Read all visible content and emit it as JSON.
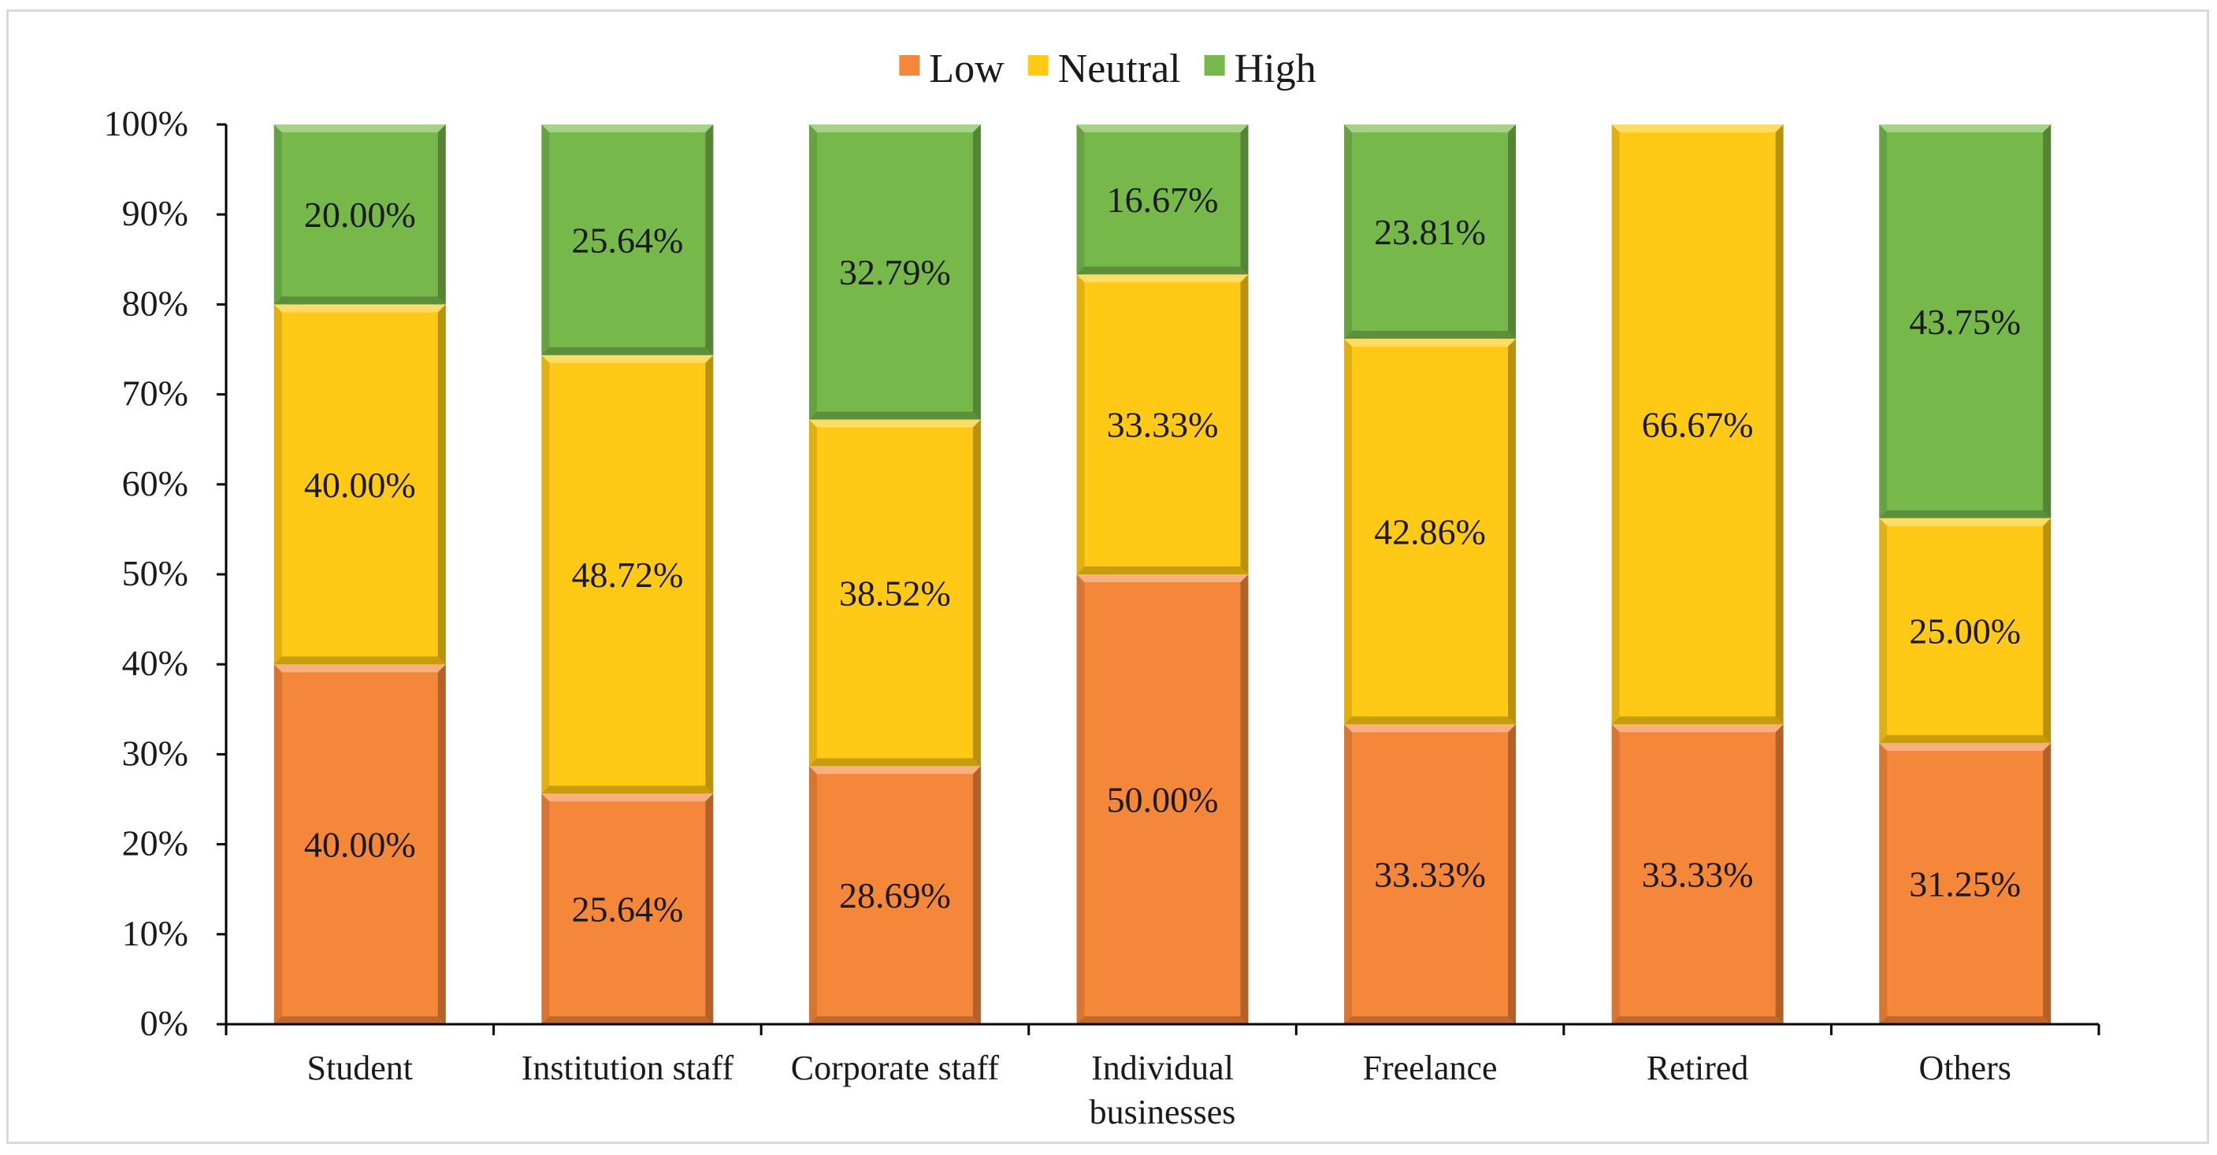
{
  "chart_data": {
    "type": "bar",
    "stacked": true,
    "percent_stacked": true,
    "title": "",
    "xlabel": "",
    "ylabel": "",
    "ylim": [
      0,
      100
    ],
    "ytick_labels": [
      "0%",
      "10%",
      "20%",
      "30%",
      "40%",
      "50%",
      "60%",
      "70%",
      "80%",
      "90%",
      "100%"
    ],
    "legend_position": "top-center",
    "categories": [
      [
        "Student"
      ],
      [
        "Institution staff"
      ],
      [
        "Corporate staff"
      ],
      [
        "Individual",
        "businesses"
      ],
      [
        "Freelance"
      ],
      [
        "Retired"
      ],
      [
        "Others"
      ]
    ],
    "series": [
      {
        "name": "Low",
        "color": "#F5873A",
        "values": [
          40.0,
          25.64,
          28.69,
          50.0,
          33.33,
          33.33,
          31.25
        ],
        "labels": [
          "40.00%",
          "25.64%",
          "28.69%",
          "50.00%",
          "33.33%",
          "33.33%",
          "31.25%"
        ]
      },
      {
        "name": "Neutral",
        "color": "#FFC915",
        "values": [
          40.0,
          48.72,
          38.52,
          33.33,
          42.86,
          66.67,
          25.0
        ],
        "labels": [
          "40.00%",
          "48.72%",
          "38.52%",
          "33.33%",
          "42.86%",
          "66.67%",
          "25.00%"
        ]
      },
      {
        "name": "High",
        "color": "#76B84A",
        "values": [
          20.0,
          25.64,
          32.79,
          16.67,
          23.81,
          0,
          43.75
        ],
        "labels": [
          "20.00%",
          "25.64%",
          "32.79%",
          "16.67%",
          "23.81%",
          "",
          "43.75%"
        ]
      }
    ]
  }
}
